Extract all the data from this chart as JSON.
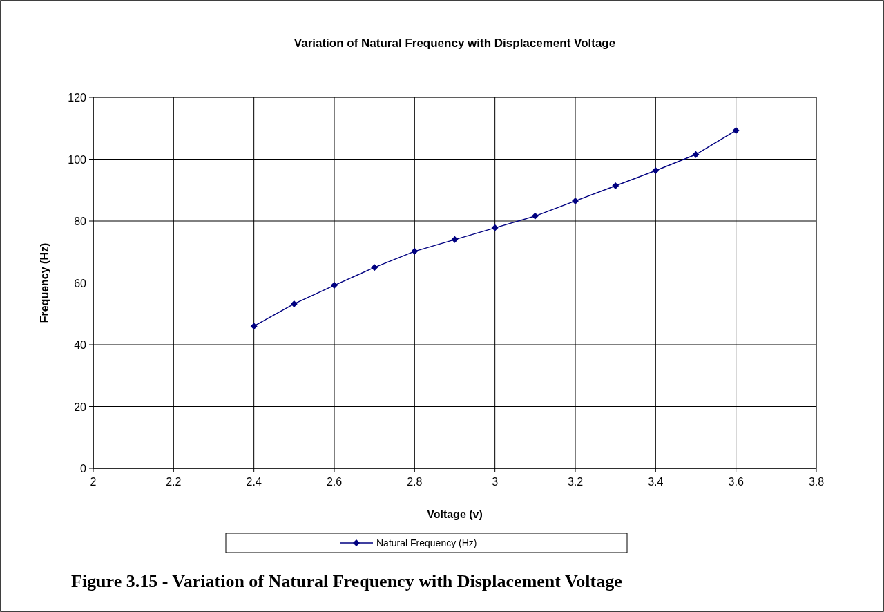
{
  "chart_data": {
    "type": "line",
    "title": "Variation of Natural Frequency with Displacement Voltage",
    "xlabel": "Voltage (v)",
    "ylabel": "Frequency (Hz)",
    "x": [
      2.4,
      2.5,
      2.6,
      2.7,
      2.8,
      2.9,
      3.0,
      3.1,
      3.2,
      3.3,
      3.4,
      3.5,
      3.6
    ],
    "series": [
      {
        "name": "Natural Frequency (Hz)",
        "color": "#000080",
        "values": [
          46,
          53.2,
          59.2,
          65,
          70.2,
          74,
          77.8,
          81.6,
          86.5,
          91.4,
          96.3,
          101.5,
          109.3
        ]
      }
    ],
    "xlim": [
      2,
      3.8
    ],
    "xticks": [
      2,
      2.2,
      2.4,
      2.6,
      2.8,
      3,
      3.2,
      3.4,
      3.6,
      3.8
    ],
    "ylim": [
      0,
      120
    ],
    "yticks": [
      0,
      20,
      40,
      60,
      80,
      100,
      120
    ],
    "grid": true,
    "legend": "bottom",
    "marker": "diamond",
    "line_style": "solid",
    "annotations": [
      "Figure 3.15 - Variation of Natural Frequency with Displacement Voltage"
    ]
  }
}
